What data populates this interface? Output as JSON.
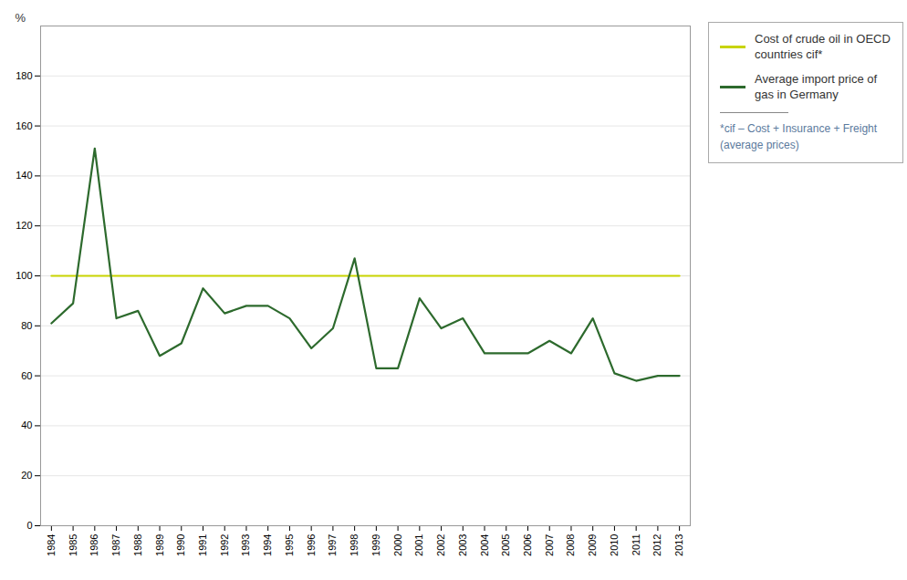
{
  "chart_data": {
    "type": "line",
    "ylabel": "%",
    "x": [
      1984,
      1985,
      1986,
      1987,
      1988,
      1989,
      1990,
      1991,
      1992,
      1993,
      1994,
      1995,
      1996,
      1997,
      1998,
      1999,
      2000,
      2001,
      2002,
      2003,
      2004,
      2005,
      2006,
      2007,
      2008,
      2009,
      2010,
      2011,
      2012,
      2013
    ],
    "series": [
      {
        "name": "Cost of crude oil in OECD\ncountries cif*",
        "color": "#c8d400",
        "values": [
          100,
          100,
          100,
          100,
          100,
          100,
          100,
          100,
          100,
          100,
          100,
          100,
          100,
          100,
          100,
          100,
          100,
          100,
          100,
          100,
          100,
          100,
          100,
          100,
          100,
          100,
          100,
          100,
          100,
          100
        ]
      },
      {
        "name": "Average import price of\ngas in Germany",
        "color": "#2d6a2d",
        "values": [
          81,
          89,
          151,
          83,
          86,
          68,
          73,
          95,
          85,
          88,
          88,
          83,
          71,
          79,
          107,
          63,
          63,
          91,
          79,
          83,
          69,
          69,
          69,
          74,
          69,
          83,
          61,
          58,
          60,
          60
        ]
      }
    ],
    "xlim": [
      1983.5,
      2013.5
    ],
    "xticks": [
      1984,
      1985,
      1986,
      1987,
      1988,
      1989,
      1990,
      1991,
      1992,
      1993,
      1994,
      1995,
      1996,
      1997,
      1998,
      1999,
      2000,
      2001,
      2002,
      2003,
      2004,
      2005,
      2006,
      2007,
      2008,
      2009,
      2010,
      2011,
      2012,
      2013
    ],
    "ylim": [
      0,
      200
    ],
    "yticks": [
      0,
      20,
      40,
      60,
      80,
      100,
      120,
      140,
      160,
      180
    ],
    "grid": true,
    "legend": "upper right",
    "annotations": [
      "*cif – Cost + Insurance + Freight\n(average prices)"
    ]
  }
}
